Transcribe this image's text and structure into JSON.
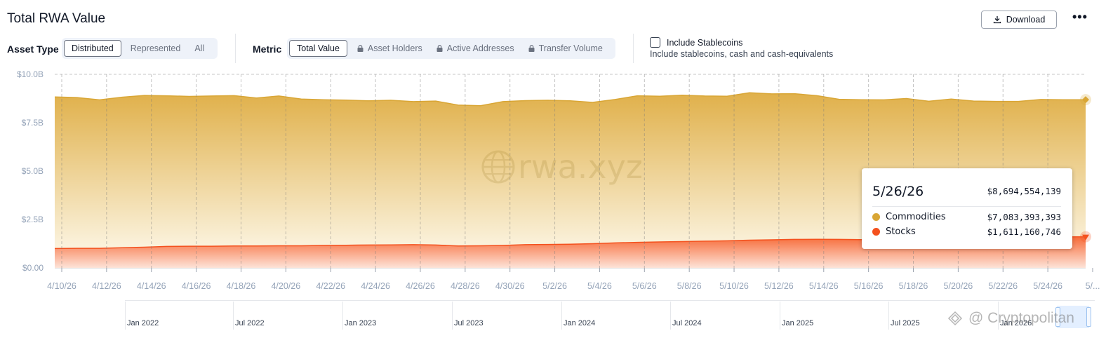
{
  "header": {
    "title": "Total RWA Value",
    "download_label": "Download",
    "more_label": "•••"
  },
  "filters": {
    "asset_type_label": "Asset Type",
    "asset_type_options": [
      "Distributed",
      "Represented",
      "All"
    ],
    "asset_type_selected": "Distributed",
    "metric_label": "Metric",
    "metric_options": [
      "Total Value",
      "Asset Holders",
      "Active Addresses",
      "Transfer Volume"
    ],
    "metric_locked": [
      false,
      true,
      true,
      true
    ],
    "metric_selected": "Total Value",
    "stablecoins_label": "Include Stablecoins",
    "stablecoins_sub": "Include stablecoins, cash and cash-equivalents",
    "stablecoins_checked": false
  },
  "tooltip": {
    "date": "5/26/26",
    "total": "$8,694,554,139",
    "rows": [
      {
        "name": "Commodities",
        "value": "$7,083,393,393",
        "color": "#d9a635"
      },
      {
        "name": "Stocks",
        "value": "$1,611,160,746",
        "color": "#f4511e"
      }
    ]
  },
  "watermark": {
    "chart_logo": "rwa.xyz",
    "credit": "@ Cryptopolitan"
  },
  "navigator": {
    "labels": [
      "Jan 2022",
      "Jul 2022",
      "Jan 2023",
      "Jul 2023",
      "Jan 2024",
      "Jul 2024",
      "Jan 2025",
      "Jul 2025",
      "Jan 2026"
    ]
  },
  "chart_data": {
    "type": "area",
    "stacked": true,
    "x_tick_labels": [
      "4/10/26",
      "4/12/26",
      "4/14/26",
      "4/16/26",
      "4/18/26",
      "4/20/26",
      "4/22/26",
      "4/24/26",
      "4/26/26",
      "4/28/26",
      "4/30/26",
      "5/2/26",
      "5/4/26",
      "5/6/26",
      "5/8/26",
      "5/10/26",
      "5/12/26",
      "5/14/26",
      "5/16/26",
      "5/18/26",
      "5/20/26",
      "5/22/26",
      "5/24/26",
      "5/..."
    ],
    "y_tick_labels": [
      "$0.00",
      "$2.5B",
      "$5.0B",
      "$7.5B",
      "$10.0B"
    ],
    "ylim": [
      0,
      10000000000
    ],
    "xlim": [
      "2026-04-10",
      "2026-05-26"
    ],
    "grid": true,
    "x": [
      "2026-04-10",
      "2026-04-11",
      "2026-04-12",
      "2026-04-13",
      "2026-04-14",
      "2026-04-15",
      "2026-04-16",
      "2026-04-17",
      "2026-04-18",
      "2026-04-19",
      "2026-04-20",
      "2026-04-21",
      "2026-04-22",
      "2026-04-23",
      "2026-04-24",
      "2026-04-25",
      "2026-04-26",
      "2026-04-27",
      "2026-04-28",
      "2026-04-29",
      "2026-04-30",
      "2026-05-01",
      "2026-05-02",
      "2026-05-03",
      "2026-05-04",
      "2026-05-05",
      "2026-05-06",
      "2026-05-07",
      "2026-05-08",
      "2026-05-09",
      "2026-05-10",
      "2026-05-11",
      "2026-05-12",
      "2026-05-13",
      "2026-05-14",
      "2026-05-15",
      "2026-05-16",
      "2026-05-17",
      "2026-05-18",
      "2026-05-19",
      "2026-05-20",
      "2026-05-21",
      "2026-05-22",
      "2026-05-23",
      "2026-05-24",
      "2026-05-25",
      "2026-05-26"
    ],
    "series": [
      {
        "name": "Stocks",
        "color": "#f4511e",
        "values": [
          1.0,
          1.01,
          1.01,
          1.04,
          1.07,
          1.11,
          1.12,
          1.12,
          1.13,
          1.13,
          1.14,
          1.14,
          1.16,
          1.17,
          1.18,
          1.19,
          1.2,
          1.18,
          1.13,
          1.14,
          1.16,
          1.2,
          1.21,
          1.22,
          1.25,
          1.29,
          1.32,
          1.34,
          1.36,
          1.38,
          1.4,
          1.43,
          1.45,
          1.47,
          1.48,
          1.47,
          1.46,
          1.45,
          1.47,
          1.49,
          1.51,
          1.52,
          1.54,
          1.56,
          1.58,
          1.6,
          1.61
        ]
      },
      {
        "name": "Commodities",
        "color": "#d9a635",
        "values": [
          7.83,
          7.79,
          7.67,
          7.78,
          7.84,
          7.78,
          7.74,
          7.76,
          7.77,
          7.65,
          7.74,
          7.58,
          7.53,
          7.5,
          7.45,
          7.47,
          7.39,
          7.44,
          7.28,
          7.24,
          7.43,
          7.44,
          7.45,
          7.41,
          7.3,
          7.41,
          7.57,
          7.53,
          7.56,
          7.5,
          7.47,
          7.62,
          7.54,
          7.53,
          7.42,
          7.24,
          7.23,
          7.23,
          7.28,
          7.12,
          7.21,
          7.1,
          7.06,
          7.04,
          7.12,
          7.09,
          7.08
        ]
      }
    ],
    "value_unit": "billion USD",
    "highlighted_point": "2026-05-26"
  }
}
